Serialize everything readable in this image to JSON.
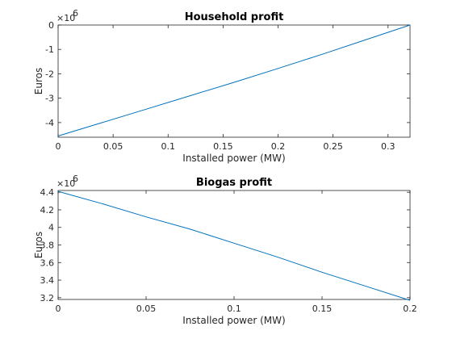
{
  "chart_data": [
    {
      "type": "line",
      "title": "Household profit",
      "xlabel": "Installed power (MW)",
      "ylabel": "Euros",
      "y_exponent_base": "×10",
      "y_exponent_power": "6",
      "xlim": [
        0,
        0.32
      ],
      "ylim": [
        -4.6,
        0
      ],
      "xticks": [
        0,
        0.05,
        0.1,
        0.15,
        0.2,
        0.25,
        0.3
      ],
      "xtick_labels": [
        "0",
        "0.05",
        "0.1",
        "0.15",
        "0.2",
        "0.25",
        "0.3"
      ],
      "yticks": [
        -4,
        -3,
        -2,
        -1,
        0
      ],
      "ytick_labels": [
        "-4",
        "-3",
        "-2",
        "-1",
        "0"
      ],
      "color": "#0072bd",
      "series": [
        {
          "x": [
            0,
            0.04,
            0.08,
            0.12,
            0.16,
            0.2,
            0.24,
            0.28,
            0.32
          ],
          "y": [
            -4.55,
            -4.0,
            -3.45,
            -2.9,
            -2.35,
            -1.78,
            -1.2,
            -0.6,
            0
          ]
        }
      ]
    },
    {
      "type": "line",
      "title": "Biogas profit",
      "xlabel": "Installed power (MW)",
      "ylabel": "Euros",
      "y_exponent_base": "×10",
      "y_exponent_power": "6",
      "xlim": [
        0,
        0.2
      ],
      "ylim": [
        3.18,
        4.42
      ],
      "xticks": [
        0,
        0.05,
        0.1,
        0.15,
        0.2
      ],
      "xtick_labels": [
        "0",
        "0.05",
        "0.1",
        "0.15",
        "0.2"
      ],
      "yticks": [
        3.2,
        3.4,
        3.6,
        3.8,
        4.0,
        4.2,
        4.4
      ],
      "ytick_labels": [
        "3.2",
        "3.4",
        "3.6",
        "3.8",
        "4",
        "4.2",
        "4.4"
      ],
      "color": "#0072bd",
      "series": [
        {
          "x": [
            0,
            0.025,
            0.05,
            0.075,
            0.1,
            0.125,
            0.15,
            0.175,
            0.2
          ],
          "y": [
            4.41,
            4.27,
            4.12,
            3.98,
            3.82,
            3.66,
            3.49,
            3.33,
            3.17
          ]
        }
      ]
    }
  ]
}
